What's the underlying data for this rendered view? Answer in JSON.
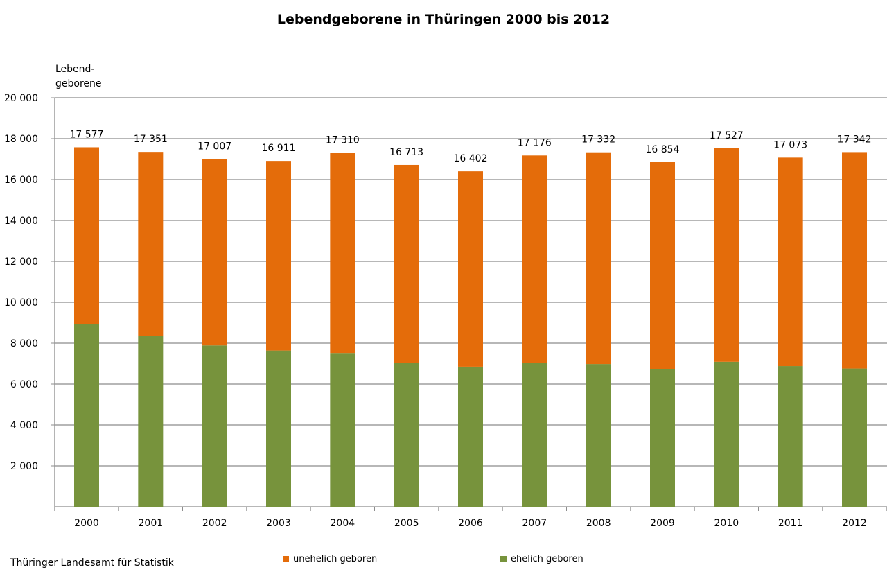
{
  "chart_data": {
    "type": "bar",
    "stacked": true,
    "title": "Lebendgeborene in Thüringen 2000 bis 2012",
    "ylabel": "Lebend-\ngeborene",
    "xlabel": "",
    "ylim": [
      0,
      20000
    ],
    "yticks": [
      2000,
      4000,
      6000,
      8000,
      10000,
      12000,
      14000,
      16000,
      18000,
      20000
    ],
    "ytick_labels": [
      "2 000",
      "4 000",
      "6 000",
      "8 000",
      "10 000",
      "12 000",
      "14 000",
      "16 000",
      "18 000",
      "20 000"
    ],
    "grid": true,
    "legend_position": "bottom",
    "categories": [
      "2000",
      "2001",
      "2002",
      "2003",
      "2004",
      "2005",
      "2006",
      "2007",
      "2008",
      "2009",
      "2010",
      "2011",
      "2012"
    ],
    "totals": [
      17577,
      17351,
      17007,
      16911,
      17310,
      16713,
      16402,
      17176,
      17332,
      16854,
      17527,
      17073,
      17342
    ],
    "total_labels": [
      "17 577",
      "17 351",
      "17 007",
      "16 911",
      "17 310",
      "16 713",
      "16 402",
      "17 176",
      "17 332",
      "16 854",
      "17 527",
      "17 073",
      "17 342"
    ],
    "series": [
      {
        "name": "ehelich geboren",
        "color": "#77933c",
        "values": [
          8940,
          8340,
          7890,
          7640,
          7520,
          7020,
          6850,
          7020,
          6980,
          6740,
          7090,
          6880,
          6760
        ]
      },
      {
        "name": "unehelich geboren",
        "color": "#e46c0a",
        "values": [
          8637,
          9011,
          9117,
          9271,
          9790,
          9693,
          9552,
          10156,
          10352,
          10114,
          10437,
          10193,
          10582
        ]
      }
    ]
  },
  "source": "Thüringer Landesamt für Statistik"
}
